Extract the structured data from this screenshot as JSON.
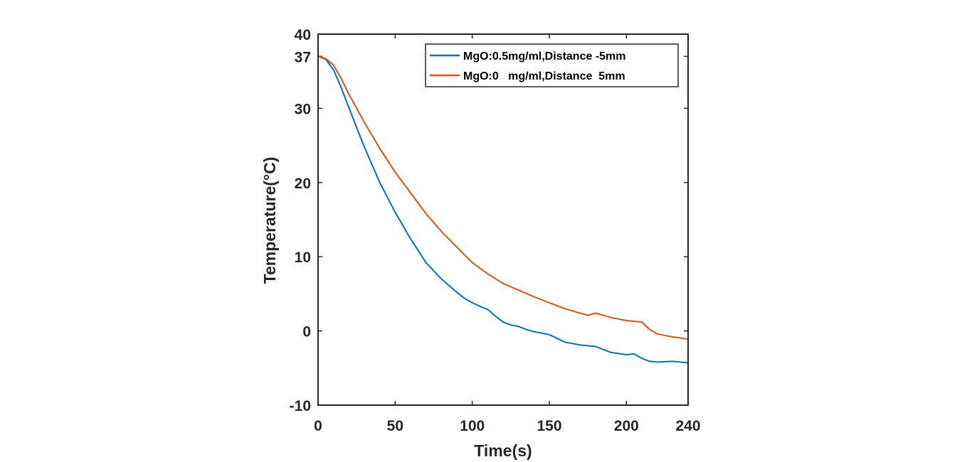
{
  "chart_data": {
    "type": "line",
    "xlabel": "Time(s)",
    "ylabel": "Temperature(°C)",
    "xlim": [
      0,
      240
    ],
    "ylim": [
      -10,
      40
    ],
    "xticks": [
      "0",
      "50",
      "100",
      "150",
      "200",
      "240"
    ],
    "yticks": [
      "-10",
      "0",
      "10",
      "20",
      "30",
      "37",
      "40"
    ],
    "grid": false,
    "legend_position": "top-right",
    "series": [
      {
        "name": "MgO:0.5mg/ml,Distance -5mm",
        "color": "#0072BD",
        "x": [
          0,
          5,
          10,
          15,
          20,
          25,
          30,
          40,
          50,
          60,
          70,
          80,
          90,
          95,
          100,
          105,
          110,
          115,
          120,
          125,
          130,
          135,
          140,
          145,
          150,
          160,
          170,
          180,
          190,
          200,
          205,
          210,
          215,
          220,
          230,
          240
        ],
        "y": [
          37,
          36.6,
          35.2,
          32.8,
          30.1,
          27.4,
          24.8,
          20,
          16,
          12.4,
          9.2,
          7,
          5.2,
          4.4,
          3.8,
          3.3,
          2.9,
          2,
          1.2,
          0.8,
          0.6,
          0.2,
          -0.1,
          -0.3,
          -0.5,
          -1.5,
          -1.9,
          -2.1,
          -2.9,
          -3.2,
          -3.1,
          -3.7,
          -4.1,
          -4.2,
          -4.1,
          -4.3
        ]
      },
      {
        "name": "MgO:0   mg/ml,Distance  5mm",
        "color": "#D95319",
        "x": [
          0,
          5,
          10,
          15,
          20,
          25,
          30,
          40,
          50,
          60,
          70,
          80,
          90,
          100,
          110,
          120,
          130,
          140,
          150,
          160,
          170,
          175,
          180,
          190,
          200,
          210,
          215,
          220,
          230,
          240
        ],
        "y": [
          37,
          36.7,
          35.8,
          34,
          31.9,
          30,
          28.1,
          24.6,
          21.4,
          18.6,
          15.8,
          13.4,
          11.3,
          9.2,
          7.7,
          6.4,
          5.5,
          4.6,
          3.8,
          3,
          2.4,
          2.1,
          2.4,
          1.8,
          1.4,
          1.2,
          0.2,
          -0.4,
          -0.8,
          -1.1
        ]
      }
    ]
  }
}
